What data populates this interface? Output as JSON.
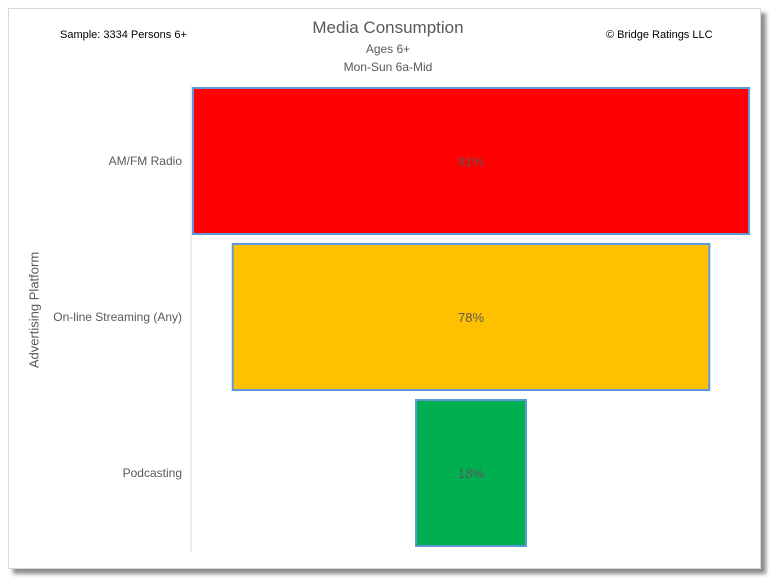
{
  "header": {
    "title": "Media Consumption",
    "subtitle_1": "Ages 6+",
    "subtitle_2": "Mon-Sun 6a-Mid",
    "sample": "Sample: 3334 Persons 6+",
    "copyright": "© Bridge Ratings LLC"
  },
  "chart_data": {
    "type": "bar",
    "title": "Media Consumption",
    "ylabel": "Advertising Platform",
    "categories": [
      "AM/FM Radio",
      "On-line Streaming (Any)",
      "Podcasting"
    ],
    "values": [
      91,
      78,
      18
    ],
    "data_labels": [
      "91%",
      "78%",
      "18%"
    ],
    "colors": [
      "#ff0000",
      "#ffc000",
      "#00b050"
    ],
    "bar_border_color": "#5b9bd5",
    "label_color": "#595959",
    "layout_style": "funnel (centered horizontal bars)",
    "grid": false
  }
}
